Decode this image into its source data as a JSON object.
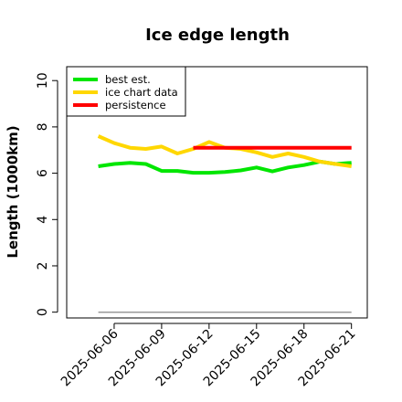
{
  "chart_data": {
    "type": "line",
    "title": "Ice edge length",
    "xlabel": "",
    "ylabel": "Length (1000km)",
    "ylim": [
      -0.25,
      10.6
    ],
    "xlim": [
      "2025-06-03",
      "2025-06-22"
    ],
    "y_ticks": [
      "0",
      "2",
      "4",
      "6",
      "8",
      "10"
    ],
    "x_ticks": [
      "2025-06-06",
      "2025-06-09",
      "2025-06-12",
      "2025-06-15",
      "2025-06-18",
      "2025-06-21"
    ],
    "grid": false,
    "legend_position": "top-left",
    "series": [
      {
        "name": "best est.",
        "color": "#00e600",
        "x": [
          "2025-06-05",
          "2025-06-06",
          "2025-06-07",
          "2025-06-08",
          "2025-06-09",
          "2025-06-10",
          "2025-06-11",
          "2025-06-12",
          "2025-06-13",
          "2025-06-14",
          "2025-06-15",
          "2025-06-16",
          "2025-06-17",
          "2025-06-18",
          "2025-06-19",
          "2025-06-20",
          "2025-06-21"
        ],
        "y": [
          6.3,
          6.4,
          6.45,
          6.4,
          6.1,
          6.1,
          6.02,
          6.02,
          6.05,
          6.12,
          6.25,
          6.08,
          6.25,
          6.35,
          6.5,
          6.4,
          6.45
        ]
      },
      {
        "name": "ice chart data",
        "color": "#ffd700",
        "x": [
          "2025-06-05",
          "2025-06-06",
          "2025-06-07",
          "2025-06-08",
          "2025-06-09",
          "2025-06-10",
          "2025-06-11",
          "2025-06-12",
          "2025-06-13",
          "2025-06-14",
          "2025-06-15",
          "2025-06-16",
          "2025-06-17",
          "2025-06-18",
          "2025-06-19",
          "2025-06-20",
          "2025-06-21"
        ],
        "y": [
          7.6,
          7.3,
          7.1,
          7.05,
          7.15,
          6.85,
          7.05,
          7.35,
          7.1,
          7.05,
          6.9,
          6.7,
          6.85,
          6.7,
          6.5,
          6.4,
          6.3
        ]
      },
      {
        "name": "persistence",
        "color": "#ff0000",
        "x": [
          "2025-06-11",
          "2025-06-21"
        ],
        "y": [
          7.1,
          7.1
        ]
      },
      {
        "name": "",
        "color": "#999999",
        "x": [
          "2025-06-05",
          "2025-06-21"
        ],
        "y": [
          0,
          0
        ]
      }
    ]
  }
}
